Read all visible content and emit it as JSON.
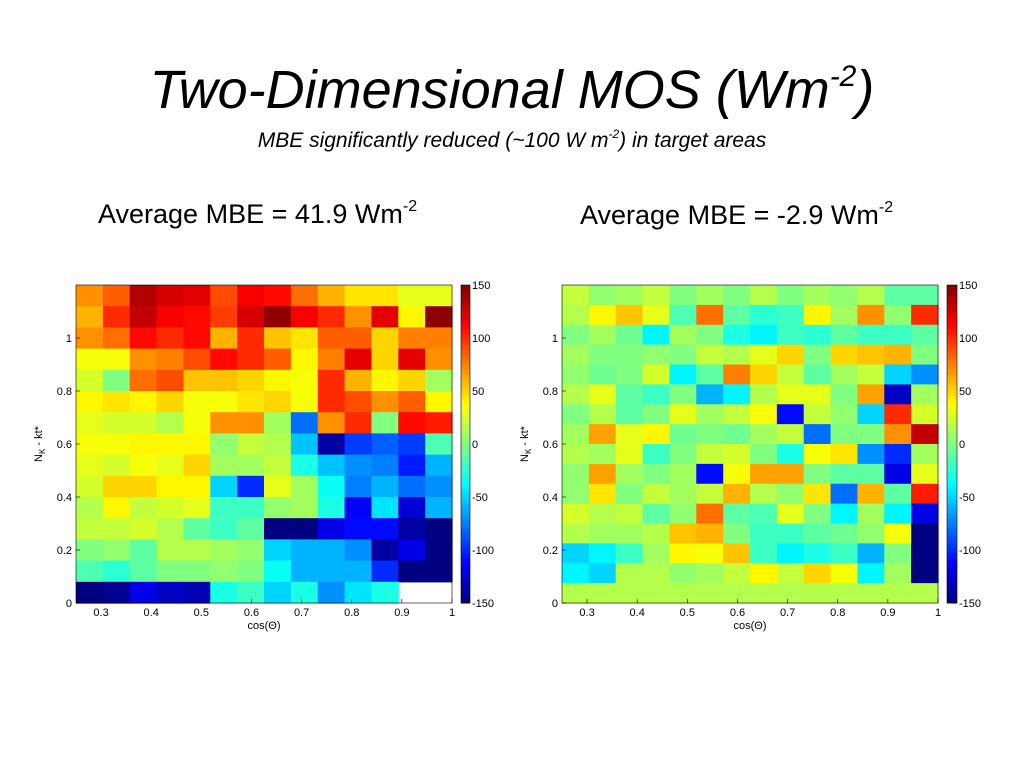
{
  "slide": {
    "title_main": "Two-Dimensional MOS (Wm",
    "title_sup": "-2",
    "title_close": ")",
    "subtitle_pre": "MBE significantly reduced (~100 W m",
    "subtitle_sup": "-2",
    "subtitle_post": ") in target areas"
  },
  "colormap": "jet",
  "chart_data": [
    {
      "type": "heatmap",
      "caption_pre": "Average MBE = 41.9 Wm",
      "caption_sup": "-2",
      "xlabel": "cos(Θ)",
      "ylabel_main": "N",
      "ylabel_sub": "K",
      "ylabel_post": " - kt*",
      "xlim": [
        0.25,
        1.0
      ],
      "ylim": [
        0,
        1.2
      ],
      "x_ticks": [
        "0.3",
        "0.4",
        "0.5",
        "0.6",
        "0.7",
        "0.8",
        "0.9",
        "1"
      ],
      "y_ticks": [
        "0",
        "0.2",
        "0.4",
        "0.6",
        "0.8",
        "1"
      ],
      "colorbar_ticks": [
        "150",
        "100",
        "50",
        "0",
        "-50",
        "-100",
        "-150"
      ],
      "clim": [
        -150,
        150
      ],
      "values": [
        [
          70,
          85,
          135,
          125,
          120,
          90,
          115,
          110,
          80,
          60,
          45,
          45,
          30,
          30
        ],
        [
          60,
          100,
          130,
          115,
          110,
          95,
          125,
          145,
          115,
          100,
          70,
          120,
          40,
          145
        ],
        [
          70,
          80,
          110,
          100,
          110,
          60,
          100,
          55,
          45,
          85,
          85,
          50,
          75,
          75
        ],
        [
          35,
          35,
          70,
          75,
          90,
          110,
          100,
          85,
          40,
          75,
          120,
          50,
          120,
          70
        ],
        [
          25,
          0,
          80,
          90,
          55,
          55,
          50,
          40,
          35,
          100,
          60,
          40,
          50,
          10
        ],
        [
          40,
          45,
          40,
          50,
          35,
          35,
          45,
          50,
          35,
          100,
          90,
          70,
          85,
          40
        ],
        [
          30,
          25,
          25,
          15,
          35,
          70,
          70,
          10,
          -80,
          70,
          100,
          0,
          110,
          105
        ],
        [
          35,
          35,
          40,
          40,
          40,
          5,
          20,
          15,
          -55,
          -140,
          -95,
          -85,
          -95,
          -15
        ],
        [
          30,
          25,
          35,
          30,
          50,
          10,
          10,
          20,
          -30,
          -55,
          -70,
          -75,
          -105,
          -60
        ],
        [
          25,
          50,
          50,
          40,
          40,
          -50,
          -100,
          30,
          10,
          -35,
          -75,
          -60,
          -80,
          -70
        ],
        [
          15,
          40,
          20,
          25,
          30,
          -20,
          -20,
          5,
          10,
          -30,
          -115,
          -45,
          -125,
          -60
        ],
        [
          20,
          20,
          25,
          15,
          -10,
          -20,
          -10,
          -150,
          -150,
          -120,
          -110,
          -110,
          -140,
          -150
        ],
        [
          0,
          5,
          -10,
          15,
          15,
          10,
          5,
          -50,
          -60,
          -60,
          -70,
          -140,
          -120,
          -150
        ],
        [
          -15,
          -25,
          -10,
          0,
          0,
          5,
          0,
          -35,
          -60,
          -60,
          -60,
          -100,
          -150,
          -150
        ],
        [
          -150,
          -145,
          -120,
          -130,
          -135,
          -30,
          -20,
          -50,
          -30,
          -70,
          -45,
          -30,
          null,
          null
        ]
      ]
    },
    {
      "type": "heatmap",
      "caption_pre": "Average MBE = -2.9 Wm",
      "caption_sup": "-2",
      "xlabel": "cos(Θ)",
      "ylabel_main": "N",
      "ylabel_sub": "K",
      "ylabel_post": " - kt*",
      "xlim": [
        0.25,
        1.0
      ],
      "ylim": [
        0,
        1.2
      ],
      "x_ticks": [
        "0.3",
        "0.4",
        "0.5",
        "0.6",
        "0.7",
        "0.8",
        "0.9",
        "1"
      ],
      "y_ticks": [
        "0",
        "0.2",
        "0.4",
        "0.6",
        "0.8",
        "1"
      ],
      "colorbar_ticks": [
        "150",
        "100",
        "50",
        "0",
        "-50",
        "-100",
        "-150"
      ],
      "clim": [
        -150,
        150
      ],
      "values": [
        [
          20,
          5,
          10,
          20,
          0,
          10,
          0,
          15,
          0,
          10,
          5,
          15,
          -10,
          -10
        ],
        [
          15,
          40,
          55,
          30,
          -15,
          80,
          -10,
          -25,
          -20,
          40,
          10,
          70,
          5,
          100
        ],
        [
          0,
          10,
          -5,
          -40,
          10,
          0,
          -30,
          -40,
          -20,
          -25,
          -10,
          -20,
          -20,
          -10
        ],
        [
          10,
          0,
          0,
          5,
          0,
          20,
          15,
          30,
          50,
          0,
          50,
          55,
          60,
          0
        ],
        [
          5,
          -5,
          0,
          25,
          -40,
          -10,
          75,
          50,
          20,
          -10,
          10,
          20,
          -50,
          -70
        ],
        [
          15,
          30,
          -10,
          -20,
          0,
          -60,
          -40,
          15,
          30,
          30,
          0,
          65,
          -130,
          10
        ],
        [
          0,
          15,
          -10,
          0,
          30,
          10,
          20,
          35,
          -110,
          20,
          5,
          -50,
          100,
          25
        ],
        [
          10,
          65,
          30,
          40,
          -5,
          0,
          -5,
          10,
          20,
          -80,
          0,
          0,
          70,
          130
        ],
        [
          15,
          10,
          30,
          -20,
          0,
          20,
          25,
          0,
          -30,
          35,
          45,
          -70,
          -100,
          10
        ],
        [
          5,
          65,
          10,
          0,
          10,
          -110,
          35,
          65,
          65,
          0,
          -10,
          -10,
          -120,
          30
        ],
        [
          5,
          45,
          0,
          20,
          10,
          20,
          60,
          15,
          5,
          45,
          -80,
          60,
          -10,
          105
        ],
        [
          25,
          15,
          20,
          -10,
          5,
          80,
          -10,
          -15,
          30,
          0,
          -40,
          10,
          -40,
          -120
        ],
        [
          15,
          10,
          10,
          15,
          55,
          60,
          0,
          -20,
          -20,
          -10,
          -5,
          5,
          35,
          -150
        ],
        [
          -50,
          -40,
          -20,
          10,
          40,
          35,
          55,
          -20,
          -40,
          -30,
          -20,
          -60,
          0,
          -150
        ],
        [
          -40,
          -50,
          15,
          15,
          5,
          10,
          20,
          40,
          20,
          50,
          35,
          -40,
          10,
          -150
        ],
        [
          15,
          15,
          15,
          15,
          15,
          15,
          15,
          15,
          15,
          15,
          15,
          15,
          15,
          15
        ]
      ]
    }
  ]
}
